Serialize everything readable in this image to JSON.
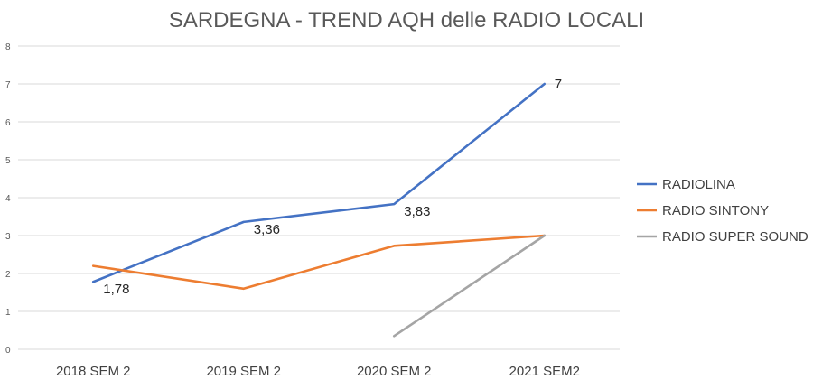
{
  "chart_data": {
    "type": "line",
    "title": "SARDEGNA - TREND AQH delle RADIO LOCALI",
    "categories": [
      "2018 SEM 2",
      "2019 SEM 2",
      "2020 SEM 2",
      "2021 SEM2"
    ],
    "ylim": [
      0,
      8
    ],
    "yticks": [
      0,
      1,
      2,
      3,
      4,
      5,
      6,
      7,
      8
    ],
    "grid": true,
    "legend_position": "right",
    "series": [
      {
        "name": "RADIOLINA",
        "color": "#4472c4",
        "values": [
          1.78,
          3.36,
          3.83,
          7
        ],
        "labels": [
          "1,78",
          "3,36",
          "3,83",
          "7"
        ]
      },
      {
        "name": "RADIO SINTONY",
        "color": "#ed7d31",
        "values": [
          2.2,
          1.6,
          2.73,
          3.0
        ],
        "labels": [
          null,
          null,
          null,
          null
        ]
      },
      {
        "name": "RADIO SUPER SOUND",
        "color": "#a5a5a5",
        "values": [
          null,
          null,
          0.35,
          3.0
        ],
        "labels": [
          null,
          null,
          null,
          null
        ]
      }
    ]
  }
}
